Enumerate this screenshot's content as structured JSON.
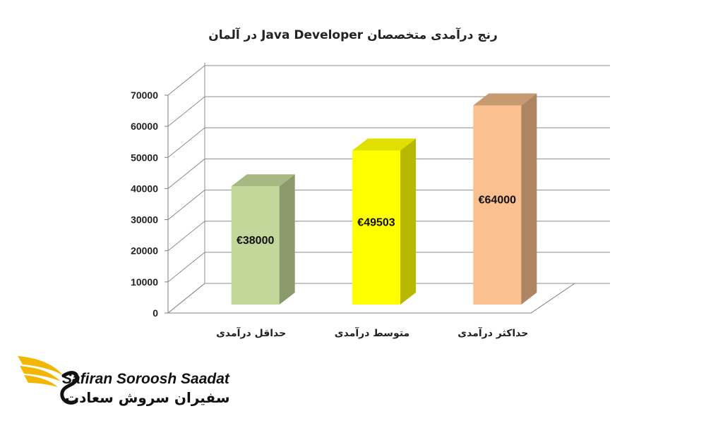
{
  "chart_data": {
    "type": "bar",
    "title": "رنج درآمدی متخصصان Java Developer در آلمان",
    "categories": [
      "حداقل درآمدی",
      "متوسط درآمدی",
      "حداکثر درآمدی"
    ],
    "values": [
      38000,
      49503,
      64000
    ],
    "data_labels": [
      "€38000",
      "€49503",
      "€64000"
    ],
    "ylim": [
      0,
      70000
    ],
    "yticks": [
      "0",
      "10000",
      "20000",
      "30000",
      "40000",
      "50000",
      "60000",
      "70000"
    ],
    "grid": true,
    "three_d": true,
    "bar_colors": [
      {
        "front": "#c4d79b",
        "side": "#8a9a6a",
        "top": "#a8b882"
      },
      {
        "front": "#ffff00",
        "side": "#b8b800",
        "top": "#e0e000"
      },
      {
        "front": "#fac090",
        "side": "#ae8562",
        "top": "#c89a72"
      }
    ]
  },
  "watermark": {
    "brand_en": "Safiran Soroosh Saadat",
    "brand_fa": "سفیران سروش سعادت"
  }
}
